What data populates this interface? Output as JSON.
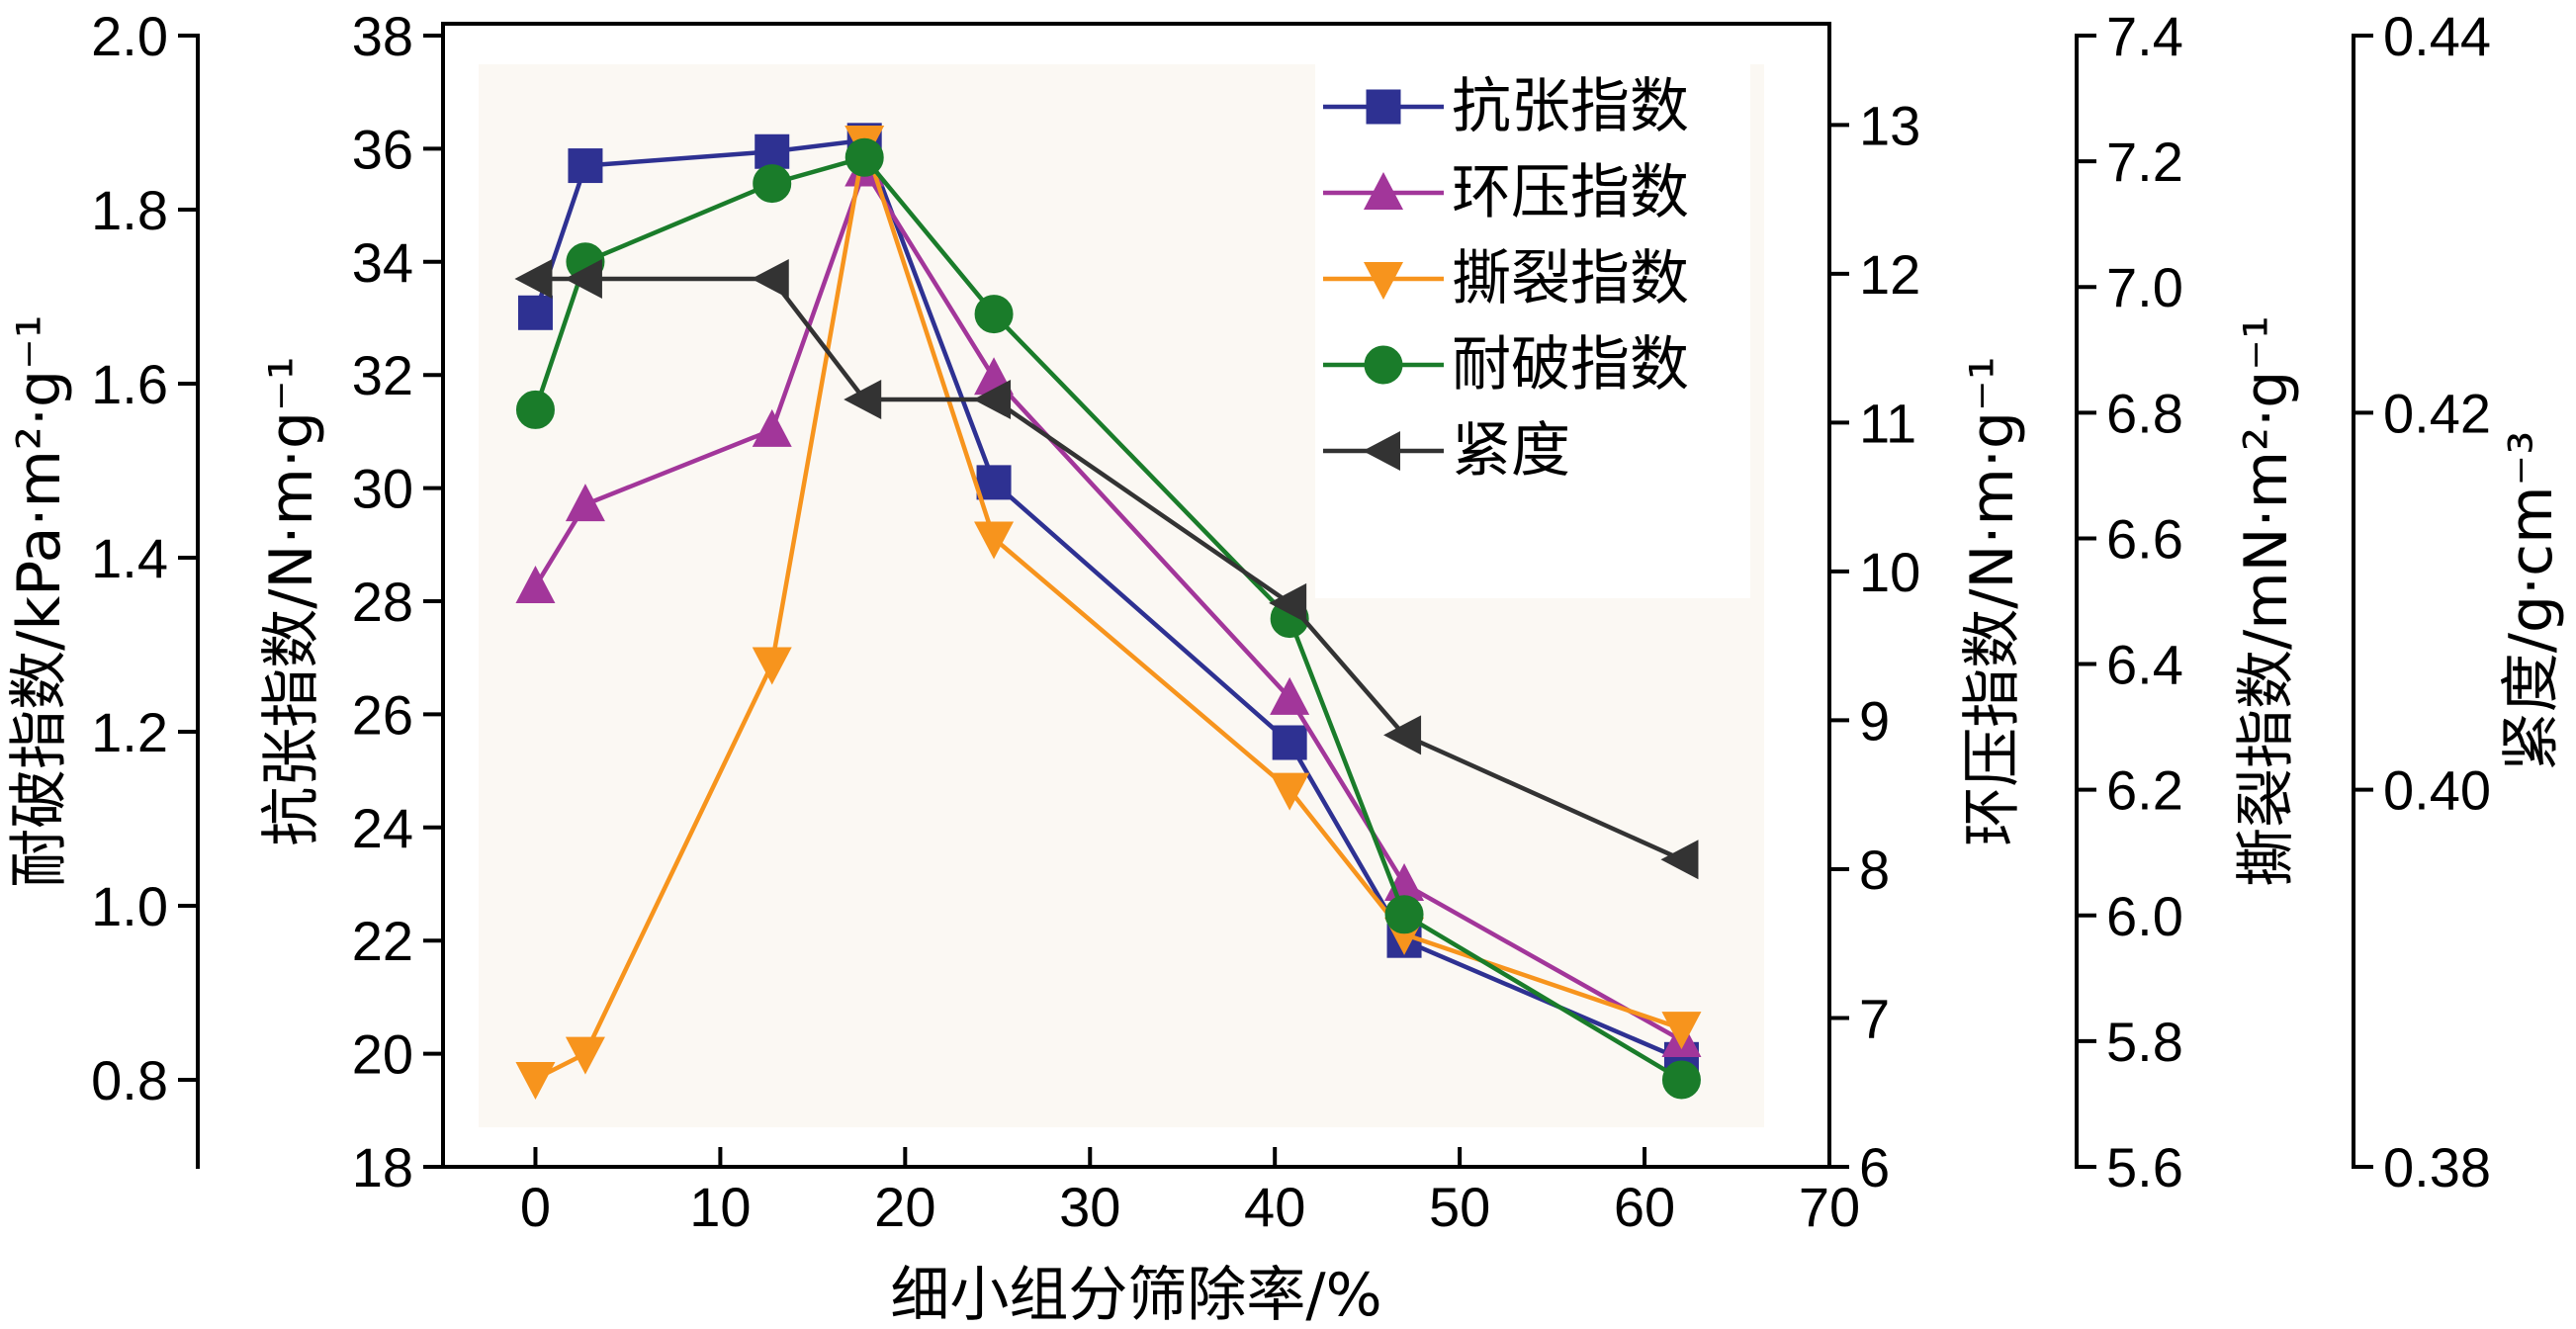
{
  "chart_data": {
    "type": "line",
    "xlabel": "细小组分筛除率/%",
    "x_ticks": [
      "0",
      "10",
      "20",
      "30",
      "40",
      "50",
      "60",
      "70"
    ],
    "xlim": [
      -5,
      70
    ],
    "grid": false,
    "legend_position": "top-right",
    "axes": [
      {
        "id": "burst",
        "label": "耐破指数/kPa·m²·g⁻¹",
        "ylim": [
          0.7,
          2.0
        ],
        "ticks": [
          "0.8",
          "1.0",
          "1.2",
          "1.4",
          "1.6",
          "1.8",
          "2.0"
        ],
        "side": "left-outer"
      },
      {
        "id": "tensile",
        "label": "抗张指数/N·m·g⁻¹",
        "ylim": [
          18,
          38
        ],
        "ticks": [
          "18",
          "20",
          "22",
          "24",
          "26",
          "28",
          "30",
          "32",
          "34",
          "36",
          "38"
        ],
        "side": "left"
      },
      {
        "id": "ring",
        "label": "环压指数/N·m·g⁻¹",
        "ylim": [
          6.0,
          13.6
        ],
        "ticks": [
          "6",
          "7",
          "8",
          "9",
          "10",
          "11",
          "12",
          "13"
        ],
        "side": "right"
      },
      {
        "id": "tear",
        "label": "撕裂指数/mN·m²·g⁻¹",
        "ylim": [
          5.6,
          7.4
        ],
        "ticks": [
          "5.6",
          "5.8",
          "6.0",
          "6.2",
          "6.4",
          "6.6",
          "6.8",
          "7.0",
          "7.2",
          "7.4"
        ],
        "side": "right-outer-1"
      },
      {
        "id": "density",
        "label": "紧度/g·cm⁻³",
        "ylim": [
          0.38,
          0.44
        ],
        "ticks": [
          "0.38",
          "0.40",
          "0.42",
          "0.44"
        ],
        "side": "right-outer-2"
      }
    ],
    "series": [
      {
        "name": "抗张指数",
        "axis": "tensile",
        "color": "#2e3192",
        "marker": "square",
        "x": [
          0,
          2.7,
          12.8,
          17.8,
          24.8,
          40.8,
          47,
          62
        ],
        "y": [
          33.1,
          35.7,
          35.95,
          36.15,
          30.1,
          25.5,
          22.0,
          19.9
        ]
      },
      {
        "name": "环压指数",
        "axis": "ring",
        "color": "#a2369a",
        "marker": "triangle-up",
        "x": [
          0,
          2.7,
          12.8,
          17.8,
          24.8,
          40.8,
          47,
          62
        ],
        "y": [
          9.9,
          10.45,
          10.95,
          12.7,
          11.3,
          9.15,
          7.9,
          6.85
        ]
      },
      {
        "name": "撕裂指数",
        "axis": "tear",
        "color": "#f7941d",
        "marker": "triangle-down",
        "x": [
          0,
          2.7,
          12.8,
          17.8,
          24.8,
          40.8,
          47,
          62
        ],
        "y": [
          5.74,
          5.78,
          6.4,
          7.23,
          6.6,
          6.2,
          5.97,
          5.82
        ]
      },
      {
        "name": "耐破指数",
        "axis": "burst",
        "color": "#1a7c2a",
        "marker": "circle",
        "x": [
          0,
          2.7,
          12.8,
          17.8,
          24.8,
          40.8,
          47,
          62
        ],
        "y": [
          1.57,
          1.74,
          1.83,
          1.86,
          1.68,
          1.33,
          0.99,
          0.8
        ]
      },
      {
        "name": "紧度",
        "axis": "density",
        "color": "#333333",
        "marker": "triangle-left",
        "x": [
          0,
          2.7,
          12.8,
          17.8,
          24.8,
          40.8,
          47,
          62
        ],
        "y": [
          0.4271,
          0.4271,
          0.4271,
          0.4207,
          0.4207,
          0.4099,
          0.4029,
          0.3963
        ]
      }
    ]
  }
}
